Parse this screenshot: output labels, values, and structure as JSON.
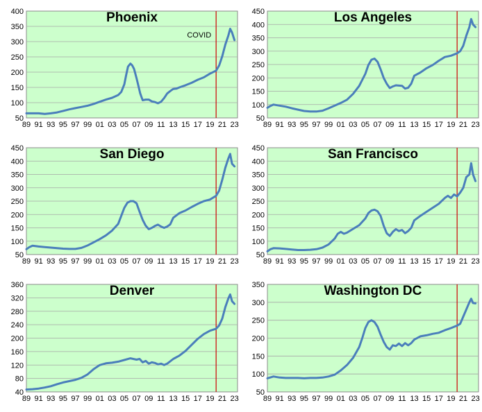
{
  "chart_data": [
    {
      "type": "line",
      "title": "Phoenix",
      "annotation": "COVID",
      "ylim": [
        50,
        400
      ],
      "yticks": [
        50,
        100,
        150,
        200,
        250,
        300,
        350,
        400
      ],
      "xticks": [
        "89",
        "91",
        "93",
        "95",
        "97",
        "99",
        "01",
        "03",
        "05",
        "07",
        "09",
        "11",
        "13",
        "15",
        "17",
        "19",
        "21",
        "23"
      ],
      "xrange": [
        1989,
        2023.5
      ],
      "covid_x": 2020.0,
      "series": [
        {
          "x": [
            1989,
            1990,
            1991,
            1992,
            1993,
            1994,
            1995,
            1996,
            1997,
            1998,
            1999,
            2000,
            2001,
            2002,
            2003,
            2004,
            2004.5,
            2005,
            2005.3,
            2005.6,
            2006,
            2006.3,
            2006.6,
            2007,
            2007.3,
            2007.6,
            2008,
            2008.5,
            2009,
            2009.5,
            2010,
            2010.5,
            2011,
            2011.5,
            2012,
            2012.5,
            2013,
            2013.5,
            2014,
            2015,
            2016,
            2017,
            2018,
            2019,
            2020,
            2020.5,
            2021,
            2021.5,
            2022,
            2022.3,
            2022.6,
            2023
          ],
          "values": [
            65,
            65,
            65,
            63,
            65,
            68,
            73,
            78,
            82,
            86,
            90,
            96,
            103,
            110,
            116,
            125,
            135,
            160,
            190,
            218,
            228,
            222,
            210,
            180,
            155,
            130,
            108,
            110,
            110,
            104,
            102,
            98,
            103,
            115,
            130,
            138,
            145,
            146,
            150,
            157,
            165,
            175,
            183,
            195,
            205,
            222,
            252,
            290,
            320,
            342,
            330,
            305
          ]
        }
      ]
    },
    {
      "type": "line",
      "title": "Los Angeles",
      "ylim": [
        50,
        450
      ],
      "yticks": [
        50,
        100,
        150,
        200,
        250,
        300,
        350,
        400,
        450
      ],
      "xticks": [
        "89",
        "91",
        "93",
        "95",
        "97",
        "99",
        "01",
        "03",
        "05",
        "07",
        "09",
        "11",
        "13",
        "15",
        "17",
        "19",
        "21",
        "23"
      ],
      "xrange": [
        1989,
        2023.5
      ],
      "covid_x": 2020.0,
      "series": [
        {
          "x": [
            1989,
            1989.5,
            1990,
            1991,
            1992,
            1993,
            1994,
            1995,
            1996,
            1997,
            1998,
            1999,
            2000,
            2001,
            2002,
            2003,
            2004,
            2005,
            2005.5,
            2006,
            2006.5,
            2007,
            2007.5,
            2008,
            2008.5,
            2009,
            2009.5,
            2010,
            2011,
            2011.5,
            2012,
            2012.5,
            2013,
            2014,
            2015,
            2016,
            2017,
            2018,
            2019,
            2020,
            2020.5,
            2021,
            2021.5,
            2022,
            2022.3,
            2022.6,
            2023
          ],
          "values": [
            88,
            95,
            100,
            96,
            92,
            86,
            81,
            76,
            74,
            74,
            77,
            86,
            96,
            106,
            118,
            140,
            170,
            215,
            248,
            268,
            272,
            260,
            232,
            200,
            178,
            162,
            168,
            172,
            170,
            160,
            163,
            178,
            208,
            220,
            236,
            248,
            264,
            278,
            283,
            292,
            300,
            320,
            358,
            390,
            420,
            400,
            390
          ]
        }
      ]
    },
    {
      "type": "line",
      "title": "San Diego",
      "ylim": [
        50,
        450
      ],
      "yticks": [
        50,
        100,
        150,
        200,
        250,
        300,
        350,
        400,
        450
      ],
      "xticks": [
        "89",
        "91",
        "93",
        "95",
        "97",
        "99",
        "01",
        "03",
        "05",
        "07",
        "09",
        "11",
        "13",
        "15",
        "17",
        "19",
        "21",
        "23"
      ],
      "xrange": [
        1989,
        2023.5
      ],
      "covid_x": 2020.0,
      "series": [
        {
          "x": [
            1989,
            1989.5,
            1990,
            1991,
            1992,
            1993,
            1994,
            1995,
            1996,
            1997,
            1998,
            1999,
            2000,
            2001,
            2002,
            2003,
            2004,
            2004.5,
            2005,
            2005.5,
            2006,
            2006.5,
            2007,
            2007.5,
            2008,
            2008.5,
            2009,
            2009.5,
            2010,
            2010.5,
            2011,
            2011.5,
            2012,
            2012.5,
            2013,
            2014,
            2015,
            2016,
            2017,
            2018,
            2019,
            2020,
            2020.5,
            2021,
            2021.5,
            2022,
            2022.3,
            2022.6,
            2023
          ],
          "values": [
            70,
            78,
            83,
            80,
            78,
            76,
            74,
            72,
            71,
            71,
            75,
            84,
            96,
            108,
            122,
            140,
            165,
            195,
            225,
            244,
            250,
            250,
            242,
            210,
            180,
            158,
            145,
            150,
            157,
            162,
            155,
            150,
            155,
            163,
            188,
            205,
            215,
            228,
            240,
            250,
            256,
            270,
            290,
            330,
            375,
            410,
            427,
            390,
            380
          ]
        }
      ]
    },
    {
      "type": "line",
      "title": "San Francisco",
      "ylim": [
        50,
        450
      ],
      "yticks": [
        50,
        100,
        150,
        200,
        250,
        300,
        350,
        400,
        450
      ],
      "xticks": [
        "89",
        "91",
        "93",
        "95",
        "97",
        "99",
        "01",
        "03",
        "05",
        "07",
        "09",
        "11",
        "13",
        "15",
        "17",
        "19",
        "21",
        "23"
      ],
      "xrange": [
        1989,
        2023.5
      ],
      "covid_x": 2020.0,
      "series": [
        {
          "x": [
            1989,
            1989.5,
            1990,
            1991,
            1992,
            1993,
            1994,
            1995,
            1996,
            1997,
            1998,
            1999,
            2000,
            2000.5,
            2001,
            2001.5,
            2002,
            2003,
            2004,
            2005,
            2005.5,
            2006,
            2006.5,
            2007,
            2007.5,
            2008,
            2008.5,
            2009,
            2009.5,
            2010,
            2010.5,
            2011,
            2011.5,
            2012,
            2012.5,
            2013,
            2014,
            2015,
            2016,
            2017,
            2018,
            2018.5,
            2019,
            2019.5,
            2020,
            2020.5,
            2021,
            2021.5,
            2022,
            2022.3,
            2022.6,
            2023
          ],
          "values": [
            62,
            70,
            74,
            73,
            71,
            69,
            67,
            67,
            68,
            70,
            76,
            88,
            110,
            128,
            135,
            128,
            132,
            146,
            160,
            185,
            205,
            215,
            218,
            212,
            195,
            158,
            130,
            120,
            135,
            145,
            138,
            142,
            130,
            138,
            150,
            178,
            195,
            210,
            225,
            240,
            262,
            270,
            262,
            275,
            268,
            282,
            300,
            340,
            350,
            392,
            350,
            325
          ]
        }
      ]
    },
    {
      "type": "line",
      "title": "Denver",
      "ylim": [
        40,
        360
      ],
      "yticks": [
        40,
        80,
        120,
        160,
        200,
        240,
        280,
        320,
        360
      ],
      "xticks": [
        "89",
        "91",
        "93",
        "95",
        "97",
        "99",
        "01",
        "03",
        "05",
        "07",
        "09",
        "11",
        "13",
        "15",
        "17",
        "19",
        "21",
        "23"
      ],
      "xrange": [
        1989,
        2023.5
      ],
      "covid_x": 2020.0,
      "series": [
        {
          "x": [
            1989,
            1990,
            1991,
            1992,
            1993,
            1994,
            1995,
            1996,
            1997,
            1998,
            1999,
            2000,
            2001,
            2002,
            2003,
            2004,
            2005,
            2006,
            2007,
            2007.5,
            2008,
            2008.5,
            2009,
            2009.5,
            2010,
            2010.5,
            2011,
            2011.5,
            2012,
            2013,
            2014,
            2015,
            2016,
            2017,
            2018,
            2019,
            2020,
            2020.5,
            2021,
            2021.5,
            2022,
            2022.3,
            2022.6,
            2023
          ],
          "values": [
            47,
            48,
            50,
            53,
            57,
            63,
            68,
            72,
            76,
            82,
            92,
            108,
            120,
            125,
            127,
            130,
            135,
            140,
            136,
            138,
            128,
            132,
            124,
            128,
            126,
            122,
            124,
            120,
            124,
            138,
            148,
            162,
            180,
            198,
            212,
            222,
            228,
            238,
            258,
            292,
            318,
            330,
            310,
            302
          ]
        }
      ]
    },
    {
      "type": "line",
      "title": "Washington DC",
      "ylim": [
        50,
        350
      ],
      "yticks": [
        50,
        100,
        150,
        200,
        250,
        300,
        350
      ],
      "xticks": [
        "89",
        "91",
        "93",
        "95",
        "97",
        "99",
        "01",
        "03",
        "05",
        "07",
        "09",
        "11",
        "13",
        "15",
        "17",
        "19",
        "21",
        "23"
      ],
      "xrange": [
        1989,
        2023.5
      ],
      "covid_x": 2020.0,
      "series": [
        {
          "x": [
            1989,
            1990,
            1991,
            1992,
            1993,
            1994,
            1995,
            1996,
            1997,
            1998,
            1999,
            2000,
            2001,
            2002,
            2003,
            2004,
            2004.5,
            2005,
            2005.5,
            2006,
            2006.5,
            2007,
            2007.5,
            2008,
            2008.5,
            2009,
            2009.5,
            2010,
            2010.5,
            2011,
            2011.5,
            2012,
            2012.5,
            2013,
            2014,
            2015,
            2016,
            2017,
            2018,
            2019,
            2020,
            2020.5,
            2021,
            2021.5,
            2022,
            2022.3,
            2022.6,
            2023
          ],
          "values": [
            88,
            93,
            90,
            89,
            89,
            89,
            88,
            89,
            89,
            90,
            93,
            98,
            110,
            125,
            145,
            175,
            200,
            228,
            245,
            250,
            245,
            232,
            210,
            190,
            175,
            168,
            180,
            178,
            185,
            178,
            186,
            180,
            186,
            196,
            205,
            208,
            212,
            215,
            222,
            228,
            235,
            240,
            260,
            280,
            300,
            310,
            298,
            297
          ]
        }
      ]
    }
  ]
}
